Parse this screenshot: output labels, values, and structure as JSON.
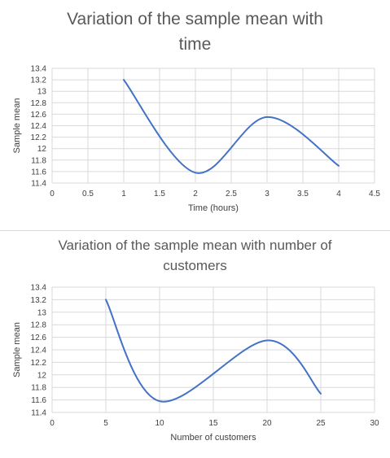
{
  "chart_data": [
    {
      "type": "line",
      "title_lines": [
        "Variation of the sample mean  with",
        "time"
      ],
      "xlabel": "Time (hours)",
      "ylabel": "Sample mean",
      "xlim": [
        0,
        4.5
      ],
      "ylim": [
        11.4,
        13.4
      ],
      "xticks": [
        "0",
        "0.5",
        "1",
        "1.5",
        "2",
        "2.5",
        "3",
        "3.5",
        "4",
        "4.5"
      ],
      "yticks": [
        "11.4",
        "11.6",
        "11.8",
        "12",
        "12.2",
        "12.4",
        "12.6",
        "12.8",
        "13",
        "13.2",
        "13.4"
      ],
      "grid": true,
      "smooth": true,
      "series": [
        {
          "x": [
            1,
            2,
            3,
            4
          ],
          "values": [
            13.2,
            11.58,
            12.55,
            11.7
          ]
        }
      ]
    },
    {
      "type": "line",
      "title_lines": [
        "Variation of the sample mean  with number of",
        "customers"
      ],
      "xlabel": "Number of customers",
      "ylabel": "Sample mean",
      "xlim": [
        0,
        30
      ],
      "ylim": [
        11.4,
        13.4
      ],
      "xticks": [
        "0",
        "5",
        "10",
        "15",
        "20",
        "25",
        "30"
      ],
      "yticks": [
        "11.4",
        "11.6",
        "11.8",
        "12",
        "12.2",
        "12.4",
        "12.6",
        "12.8",
        "13",
        "13.2",
        "13.4"
      ],
      "grid": true,
      "smooth": true,
      "series": [
        {
          "x": [
            5,
            10,
            20,
            25
          ],
          "values": [
            13.2,
            11.58,
            12.55,
            11.7
          ]
        }
      ]
    }
  ],
  "colors": {
    "line": "#4472c4",
    "grid": "#d9d9d9",
    "text": "#595959"
  }
}
